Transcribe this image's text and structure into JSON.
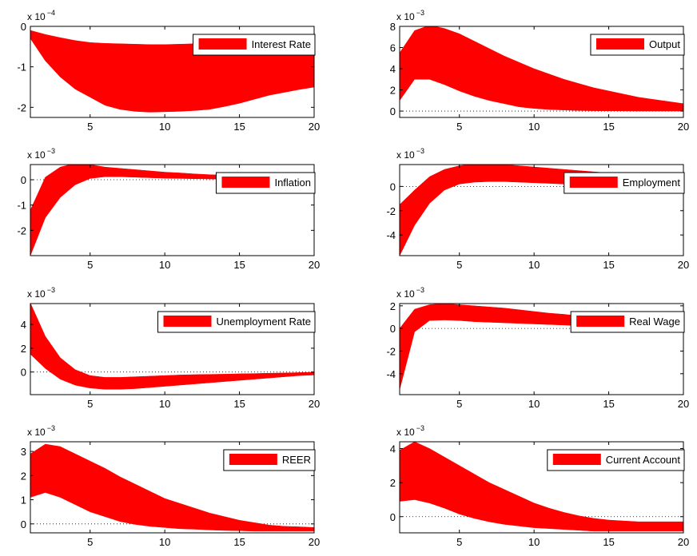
{
  "chart_data": [
    {
      "type": "band",
      "y_multiplier": {
        "base": "x 10",
        "exponent": "−4"
      },
      "legend": "upper right",
      "zero_line": true,
      "x": [
        1,
        2,
        3,
        4,
        5,
        6,
        7,
        8,
        9,
        10,
        11,
        12,
        13,
        14,
        15,
        16,
        17,
        18,
        19,
        20
      ],
      "xlim": [
        1,
        20
      ],
      "xticks": [
        5,
        10,
        15,
        20
      ],
      "ylim": [
        -2.25,
        0
      ],
      "yticks": [
        -2,
        -1,
        0
      ],
      "series": [
        {
          "name": "Interest Rate",
          "color": "#ff0000",
          "upper": [
            -0.1,
            -0.2,
            -0.28,
            -0.35,
            -0.4,
            -0.42,
            -0.43,
            -0.44,
            -0.45,
            -0.45,
            -0.44,
            -0.43,
            -0.42,
            -0.39,
            -0.36,
            -0.33,
            -0.3,
            -0.26,
            -0.23,
            -0.2
          ],
          "lower": [
            -0.3,
            -0.85,
            -1.25,
            -1.55,
            -1.75,
            -1.95,
            -2.05,
            -2.1,
            -2.12,
            -2.11,
            -2.1,
            -2.08,
            -2.05,
            -1.98,
            -1.9,
            -1.8,
            -1.7,
            -1.63,
            -1.56,
            -1.5
          ]
        }
      ]
    },
    {
      "type": "band",
      "y_multiplier": {
        "base": "x 10",
        "exponent": "−3"
      },
      "legend": "upper right",
      "zero_line": true,
      "x": [
        1,
        2,
        3,
        4,
        5,
        6,
        7,
        8,
        9,
        10,
        11,
        12,
        13,
        14,
        15,
        16,
        17,
        18,
        19,
        20
      ],
      "xlim": [
        1,
        20
      ],
      "xticks": [
        5,
        10,
        15,
        20
      ],
      "ylim": [
        -0.6,
        8
      ],
      "yticks": [
        0,
        2,
        4,
        6,
        8
      ],
      "series": [
        {
          "name": "Output",
          "color": "#ff0000",
          "upper": [
            5.5,
            7.6,
            8.1,
            7.8,
            7.3,
            6.6,
            5.9,
            5.2,
            4.6,
            4.0,
            3.5,
            3.0,
            2.6,
            2.2,
            1.9,
            1.6,
            1.3,
            1.1,
            0.9,
            0.7
          ],
          "lower": [
            1.0,
            3.0,
            3.0,
            2.5,
            1.9,
            1.4,
            1.0,
            0.7,
            0.4,
            0.25,
            0.15,
            0.1,
            0.05,
            0.03,
            0.02,
            0.01,
            0,
            0,
            0,
            0
          ]
        }
      ]
    },
    {
      "type": "band",
      "y_multiplier": {
        "base": "x 10",
        "exponent": "−3"
      },
      "legend": "upper right",
      "zero_line": true,
      "x": [
        1,
        2,
        3,
        4,
        5,
        6,
        7,
        8,
        9,
        10,
        11,
        12,
        13,
        14,
        15,
        16,
        17,
        18,
        19,
        20
      ],
      "xlim": [
        1,
        20
      ],
      "xticks": [
        5,
        10,
        15,
        20
      ],
      "ylim": [
        -3.0,
        0.6
      ],
      "yticks": [
        -2,
        -1,
        0
      ],
      "series": [
        {
          "name": "Inflation",
          "color": "#ff0000",
          "upper": [
            -1.2,
            0.1,
            0.5,
            0.65,
            0.6,
            0.5,
            0.45,
            0.4,
            0.35,
            0.3,
            0.27,
            0.23,
            0.2,
            0.18,
            0.15,
            0.13,
            0.12,
            0.1,
            0.09,
            0.08
          ],
          "lower": [
            -3.0,
            -1.5,
            -0.7,
            -0.2,
            0.05,
            0.12,
            0.12,
            0.1,
            0.08,
            0.06,
            0.05,
            0.04,
            0.03,
            0.02,
            0.02,
            0.01,
            0.01,
            0,
            0,
            0
          ]
        }
      ]
    },
    {
      "type": "band",
      "y_multiplier": {
        "base": "x 10",
        "exponent": "−3"
      },
      "legend": "upper right",
      "zero_line": true,
      "x": [
        1,
        2,
        3,
        4,
        5,
        6,
        7,
        8,
        9,
        10,
        11,
        12,
        13,
        14,
        15,
        16,
        17,
        18,
        19,
        20
      ],
      "xlim": [
        1,
        20
      ],
      "xticks": [
        5,
        10,
        15,
        20
      ],
      "ylim": [
        -5.7,
        1.8
      ],
      "yticks": [
        -4,
        -2,
        0
      ],
      "series": [
        {
          "name": "Employment",
          "color": "#ff0000",
          "upper": [
            -1.5,
            -0.3,
            0.8,
            1.4,
            1.7,
            1.85,
            1.85,
            1.8,
            1.7,
            1.6,
            1.5,
            1.4,
            1.3,
            1.2,
            1.1,
            1.0,
            0.9,
            0.8,
            0.7,
            0.6
          ],
          "lower": [
            -5.7,
            -3.2,
            -1.4,
            -0.3,
            0.2,
            0.35,
            0.4,
            0.4,
            0.35,
            0.3,
            0.25,
            0.2,
            0.15,
            0.1,
            0.08,
            0.06,
            0.05,
            0.04,
            0.03,
            0.02
          ]
        }
      ]
    },
    {
      "type": "band",
      "y_multiplier": {
        "base": "x 10",
        "exponent": "−3"
      },
      "legend": "upper right",
      "zero_line": true,
      "x": [
        1,
        2,
        3,
        4,
        5,
        6,
        7,
        8,
        9,
        10,
        11,
        12,
        13,
        14,
        15,
        16,
        17,
        18,
        19,
        20
      ],
      "xlim": [
        1,
        20
      ],
      "xticks": [
        5,
        10,
        15,
        20
      ],
      "ylim": [
        -1.9,
        5.75
      ],
      "yticks": [
        0,
        2,
        4
      ],
      "series": [
        {
          "name": "Unemployment Rate",
          "color": "#ff0000",
          "upper": [
            5.8,
            3.0,
            1.2,
            0.2,
            -0.3,
            -0.45,
            -0.45,
            -0.4,
            -0.35,
            -0.3,
            -0.25,
            -0.22,
            -0.2,
            -0.18,
            -0.15,
            -0.13,
            -0.1,
            -0.08,
            -0.05,
            -0.02
          ],
          "lower": [
            1.5,
            0.3,
            -0.6,
            -1.1,
            -1.35,
            -1.45,
            -1.45,
            -1.4,
            -1.3,
            -1.2,
            -1.1,
            -1.0,
            -0.9,
            -0.8,
            -0.7,
            -0.6,
            -0.5,
            -0.4,
            -0.3,
            -0.25
          ]
        }
      ]
    },
    {
      "type": "band",
      "y_multiplier": {
        "base": "x 10",
        "exponent": "−3"
      },
      "legend": "upper right",
      "zero_line": true,
      "x": [
        1,
        2,
        3,
        4,
        5,
        6,
        7,
        8,
        9,
        10,
        11,
        12,
        13,
        14,
        15,
        16,
        17,
        18,
        19,
        20
      ],
      "xlim": [
        1,
        20
      ],
      "xticks": [
        5,
        10,
        15,
        20
      ],
      "ylim": [
        -5.85,
        2.2
      ],
      "yticks": [
        -4,
        -2,
        0,
        2
      ],
      "series": [
        {
          "name": "Real Wage",
          "color": "#ff0000",
          "upper": [
            0,
            1.7,
            2.1,
            2.2,
            2.1,
            2.0,
            1.9,
            1.8,
            1.65,
            1.5,
            1.35,
            1.25,
            1.1,
            1.0,
            0.9,
            0.8,
            0.7,
            0.65,
            0.55,
            0.5
          ],
          "lower": [
            -5.4,
            -0.3,
            0.7,
            0.75,
            0.7,
            0.6,
            0.55,
            0.5,
            0.45,
            0.4,
            0.35,
            0.3,
            0.25,
            0.22,
            0.2,
            0.15,
            0.12,
            0.1,
            0.08,
            0.05
          ]
        }
      ]
    },
    {
      "type": "band",
      "y_multiplier": {
        "base": "x 10",
        "exponent": "−3"
      },
      "legend": "upper right",
      "zero_line": true,
      "x": [
        1,
        2,
        3,
        4,
        5,
        6,
        7,
        8,
        9,
        10,
        11,
        12,
        13,
        14,
        15,
        16,
        17,
        18,
        19,
        20
      ],
      "xlim": [
        1,
        20
      ],
      "xticks": [
        5,
        10,
        15,
        20
      ],
      "ylim": [
        -0.37,
        3.4
      ],
      "yticks": [
        0,
        1,
        2,
        3
      ],
      "series": [
        {
          "name": "REER",
          "color": "#ff0000",
          "upper": [
            2.9,
            3.3,
            3.2,
            2.9,
            2.6,
            2.3,
            1.95,
            1.65,
            1.35,
            1.05,
            0.85,
            0.65,
            0.45,
            0.3,
            0.15,
            0.05,
            -0.05,
            -0.1,
            -0.12,
            -0.15
          ],
          "lower": [
            1.1,
            1.3,
            1.1,
            0.8,
            0.5,
            0.3,
            0.1,
            -0.02,
            -0.1,
            -0.15,
            -0.2,
            -0.22,
            -0.25,
            -0.27,
            -0.28,
            -0.3,
            -0.3,
            -0.3,
            -0.3,
            -0.3
          ]
        }
      ]
    },
    {
      "type": "band",
      "y_multiplier": {
        "base": "x 10",
        "exponent": "−3"
      },
      "legend": "upper right",
      "zero_line": true,
      "x": [
        1,
        2,
        3,
        4,
        5,
        6,
        7,
        8,
        9,
        10,
        11,
        12,
        13,
        14,
        15,
        16,
        17,
        18,
        19,
        20
      ],
      "xlim": [
        1,
        20
      ],
      "xticks": [
        5,
        10,
        15,
        20
      ],
      "ylim": [
        -0.95,
        4.4
      ],
      "yticks": [
        0,
        2,
        4
      ],
      "series": [
        {
          "name": "Current Account",
          "color": "#ff0000",
          "upper": [
            3.9,
            4.4,
            4.0,
            3.5,
            3.0,
            2.5,
            2.0,
            1.6,
            1.2,
            0.8,
            0.5,
            0.25,
            0.05,
            -0.1,
            -0.2,
            -0.25,
            -0.3,
            -0.3,
            -0.3,
            -0.3
          ],
          "lower": [
            0.9,
            1.0,
            0.8,
            0.5,
            0.15,
            -0.1,
            -0.3,
            -0.45,
            -0.55,
            -0.65,
            -0.7,
            -0.75,
            -0.8,
            -0.85,
            -0.85,
            -0.85,
            -0.85,
            -0.85,
            -0.85,
            -0.85
          ]
        }
      ]
    }
  ]
}
